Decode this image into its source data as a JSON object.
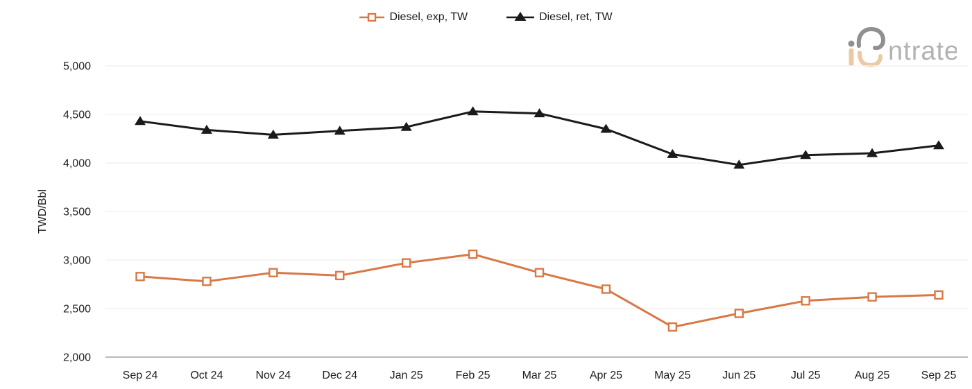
{
  "legend": {
    "position": "top-center"
  },
  "logo": {
    "brand": "intratec",
    "wordmark_text": "ntratec",
    "mark_gray": "#909090",
    "mark_tan": "#ebc9a4",
    "text_color": "#b2b2b2"
  },
  "chart_data": {
    "type": "line",
    "title": "",
    "xlabel": "",
    "ylabel": "TWD/Bbl",
    "ylim": [
      2000,
      5000
    ],
    "ytick_step": 500,
    "ytick_labels": [
      "2,000",
      "2,500",
      "3,000",
      "3,500",
      "4,000",
      "4,500",
      "5,000"
    ],
    "grid": "horizontal",
    "legend_position": "top-center",
    "categories": [
      "Sep 24",
      "Oct 24",
      "Nov 24",
      "Dec 24",
      "Jan 25",
      "Feb 25",
      "Mar 25",
      "Apr 25",
      "May 25",
      "Jun 25",
      "Jul 25",
      "Aug 25",
      "Sep 25"
    ],
    "series": [
      {
        "name": "Diesel, exp, TW",
        "marker": "square-open",
        "color": "#d97845",
        "values": [
          2830,
          2780,
          2870,
          2840,
          2970,
          3060,
          2870,
          2700,
          2310,
          2450,
          2580,
          2620,
          2640
        ]
      },
      {
        "name": "Diesel, ret, TW",
        "marker": "triangle-filled",
        "color": "#1a1a1a",
        "values": [
          4430,
          4340,
          4290,
          4330,
          4370,
          4530,
          4510,
          4350,
          4090,
          3980,
          4080,
          4100,
          4180
        ]
      }
    ],
    "colors": {
      "gridline": "#f2f2f2",
      "axis_line": "#a3a3a3",
      "tick_text": "#212121"
    }
  }
}
